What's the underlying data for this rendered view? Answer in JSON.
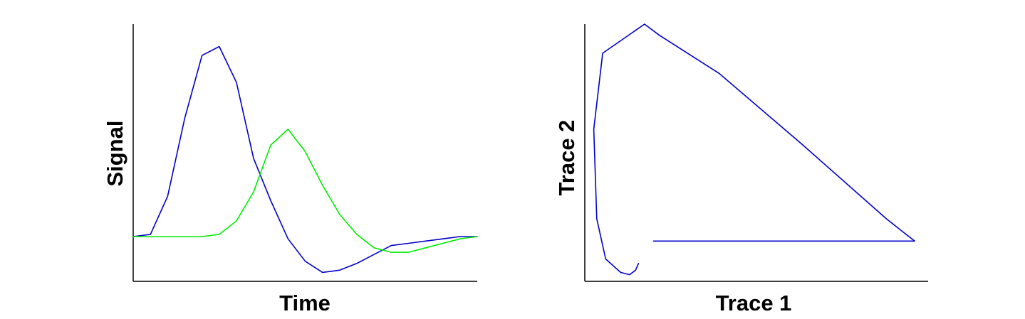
{
  "chart_data": [
    {
      "type": "line",
      "xlabel": "Time",
      "ylabel": "Signal",
      "grid": false,
      "legend": "none",
      "xlim": [
        0,
        20
      ],
      "ylim": [
        -0.15,
        1.0
      ],
      "x": [
        0,
        1,
        2,
        3,
        4,
        5,
        6,
        7,
        8,
        9,
        10,
        11,
        12,
        13,
        14,
        15,
        16,
        17,
        18,
        19,
        20
      ],
      "series": [
        {
          "color": "#0000cc",
          "values": [
            0.05,
            0.06,
            0.23,
            0.58,
            0.86,
            0.9,
            0.74,
            0.4,
            0.21,
            0.04,
            -0.06,
            -0.11,
            -0.1,
            -0.07,
            -0.03,
            0.01,
            0.02,
            0.03,
            0.04,
            0.05,
            0.05
          ]
        },
        {
          "color": "#00ee00",
          "values": [
            0.05,
            0.05,
            0.05,
            0.05,
            0.05,
            0.06,
            0.12,
            0.25,
            0.46,
            0.53,
            0.43,
            0.28,
            0.15,
            0.06,
            0.0,
            -0.02,
            -0.02,
            0.0,
            0.02,
            0.04,
            0.05
          ]
        }
      ]
    },
    {
      "type": "line",
      "xlabel": "Trace 1",
      "ylabel": "Trace 2",
      "grid": false,
      "legend": "none",
      "xlim": [
        -0.15,
        1.0
      ],
      "ylim": [
        -0.15,
        1.0
      ],
      "series": [
        {
          "color": "#0000cc",
          "points": [
            [
              0.08,
              0.03
            ],
            [
              0.08,
              0.03
            ],
            [
              0.08,
              0.03
            ],
            [
              0.08,
              0.03
            ],
            [
              0.08,
              0.03
            ],
            [
              0.08,
              0.03
            ],
            [
              0.08,
              0.03
            ],
            [
              0.08,
              0.03
            ],
            [
              0.08,
              0.03
            ],
            [
              0.08,
              0.03
            ],
            [
              0.08,
              0.03
            ],
            [
              0.08,
              0.03
            ],
            [
              0.08,
              0.03
            ],
            [
              0.08,
              0.03
            ],
            [
              0.08,
              0.03
            ]
          ],
          "x": [
            0.08,
            0.955,
            0.86,
            0.58,
            0.3,
            0.1,
            0.05,
            -0.09,
            -0.12,
            -0.11,
            -0.08,
            -0.03,
            0.0,
            0.02,
            0.03
          ],
          "y": [
            0.03,
            0.03,
            0.13,
            0.46,
            0.78,
            0.95,
            1.0,
            0.87,
            0.53,
            0.13,
            -0.05,
            -0.11,
            -0.12,
            -0.1,
            -0.07
          ]
        }
      ]
    }
  ]
}
